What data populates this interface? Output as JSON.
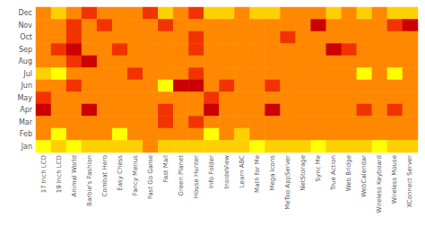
{
  "chart_data": {
    "type": "heatmap",
    "rows": [
      "Dec",
      "Nov",
      "Oct",
      "Sep",
      "Aug",
      "Jul",
      "Jun",
      "May",
      "Apr",
      "Mar",
      "Feb",
      "Jan"
    ],
    "cols": [
      "17 Inch LCD",
      "19 Inch LCD",
      "Animal World",
      "Barbie's Fashion",
      "Combat Hero",
      "Easy Chess",
      "Fancy Menus",
      "Fast Go Game",
      "Fast Mail",
      "Green Planet",
      "House Hunter",
      "Info Folder",
      "InsideView",
      "Learn ABC",
      "Math for Me",
      "Mega Icons",
      "MeToo AppServer",
      "NetStorage",
      "Sync Me",
      "True Action",
      "Web Bridge",
      "WebCalendar",
      "Wireless Keyboard",
      "Wireless Mouse",
      "XConnect Server"
    ],
    "values": [
      [
        3,
        2,
        3,
        4,
        3,
        3,
        3,
        4,
        2,
        3,
        4,
        2,
        2,
        3,
        2,
        2,
        3,
        3,
        3,
        2,
        3,
        2,
        3,
        2,
        2
      ],
      [
        3,
        3,
        4,
        3,
        4,
        3,
        3,
        3,
        4,
        3,
        3,
        3,
        3,
        3,
        3,
        3,
        3,
        3,
        5,
        3,
        3,
        3,
        3,
        4,
        5
      ],
      [
        3,
        3,
        4,
        3,
        3,
        3,
        3,
        3,
        3,
        3,
        4,
        3,
        3,
        3,
        3,
        3,
        4,
        3,
        3,
        3,
        3,
        3,
        3,
        3,
        3
      ],
      [
        3,
        4,
        5,
        3,
        3,
        4,
        3,
        3,
        3,
        3,
        4,
        3,
        3,
        3,
        3,
        3,
        3,
        3,
        3,
        5,
        4,
        3,
        3,
        3,
        3
      ],
      [
        3,
        3,
        4,
        5,
        3,
        3,
        3,
        3,
        3,
        3,
        3,
        3,
        3,
        3,
        3,
        3,
        3,
        3,
        3,
        3,
        3,
        3,
        3,
        3,
        3
      ],
      [
        2,
        1,
        3,
        3,
        3,
        3,
        4,
        3,
        3,
        3,
        4,
        3,
        3,
        3,
        3,
        3,
        3,
        3,
        3,
        3,
        3,
        1,
        3,
        1,
        3
      ],
      [
        3,
        3,
        4,
        3,
        3,
        3,
        3,
        3,
        1,
        5,
        5,
        3,
        4,
        3,
        3,
        4,
        3,
        3,
        3,
        3,
        3,
        3,
        3,
        3,
        3
      ],
      [
        4,
        3,
        3,
        3,
        3,
        3,
        3,
        3,
        3,
        3,
        3,
        4,
        3,
        3,
        3,
        3,
        3,
        3,
        3,
        3,
        3,
        3,
        3,
        3,
        3
      ],
      [
        5,
        3,
        3,
        5,
        3,
        3,
        3,
        3,
        4,
        3,
        3,
        5,
        3,
        3,
        3,
        5,
        3,
        3,
        3,
        3,
        3,
        4,
        3,
        4,
        3
      ],
      [
        3,
        3,
        3,
        3,
        3,
        3,
        3,
        3,
        4,
        3,
        4,
        3,
        3,
        3,
        3,
        3,
        3,
        3,
        3,
        3,
        3,
        3,
        3,
        3,
        3
      ],
      [
        3,
        1,
        3,
        3,
        3,
        1,
        3,
        3,
        3,
        3,
        3,
        1,
        3,
        2,
        3,
        3,
        3,
        3,
        3,
        3,
        3,
        3,
        3,
        3,
        3
      ],
      [
        1,
        2,
        1,
        2,
        2,
        2,
        2,
        3,
        2,
        2,
        2,
        2,
        2,
        2,
        1,
        2,
        2,
        2,
        1,
        2,
        2,
        2,
        1,
        2,
        2
      ]
    ],
    "clim": [
      1,
      5
    ],
    "colormap": [
      "#ffff00",
      "#ffdd00",
      "#ffaa00",
      "#ff6600",
      "#ee2200",
      "#cc0000"
    ]
  }
}
